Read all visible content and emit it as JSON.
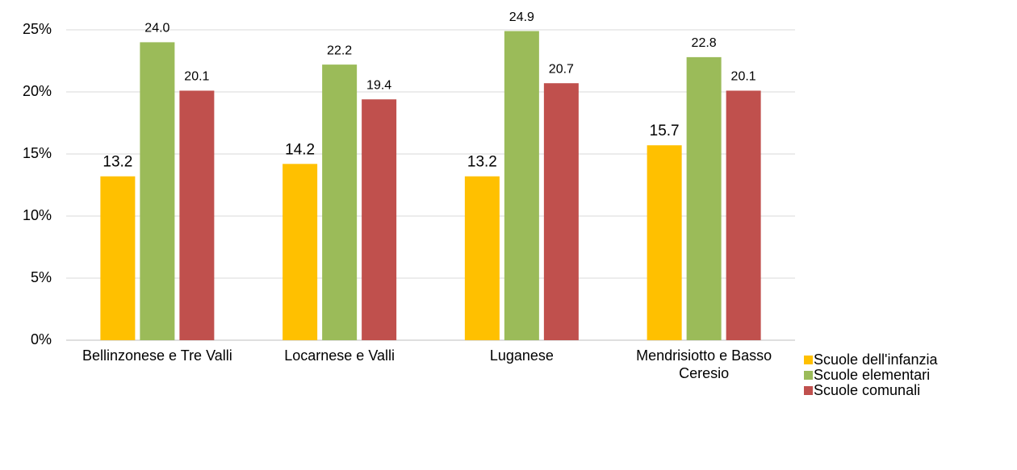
{
  "chart_data": {
    "type": "bar",
    "categories": [
      "Bellinzonese e Tre Valli",
      "Locarnese e Valli",
      "Luganese",
      "Mendrisiotto e Basso Ceresio"
    ],
    "series": [
      {
        "name": "Scuole dell'infanzia",
        "color": "#FFC000",
        "values": [
          13.2,
          14.2,
          13.2,
          15.7
        ],
        "value_labels": [
          "13.2",
          "14.2",
          "13.2",
          "15.7"
        ]
      },
      {
        "name": "Scuole elementari",
        "color": "#9BBB59",
        "values": [
          24.0,
          22.2,
          24.9,
          22.8
        ],
        "value_labels": [
          "24.0",
          "22.2",
          "24.9",
          "22.8"
        ]
      },
      {
        "name": "Scuole comunali",
        "color": "#C0504D",
        "values": [
          20.1,
          19.4,
          20.7,
          20.1
        ],
        "value_labels": [
          "20.1",
          "19.4",
          "20.7",
          "20.1"
        ]
      }
    ],
    "ylim": [
      0,
      25
    ],
    "yticks": [
      {
        "value": 0,
        "label": "0%"
      },
      {
        "value": 5,
        "label": "5%"
      },
      {
        "value": 10,
        "label": "10%"
      },
      {
        "value": 15,
        "label": "15%"
      },
      {
        "value": 20,
        "label": "20%"
      },
      {
        "value": 25,
        "label": "25%"
      }
    ],
    "grid": true,
    "legend": "right"
  }
}
